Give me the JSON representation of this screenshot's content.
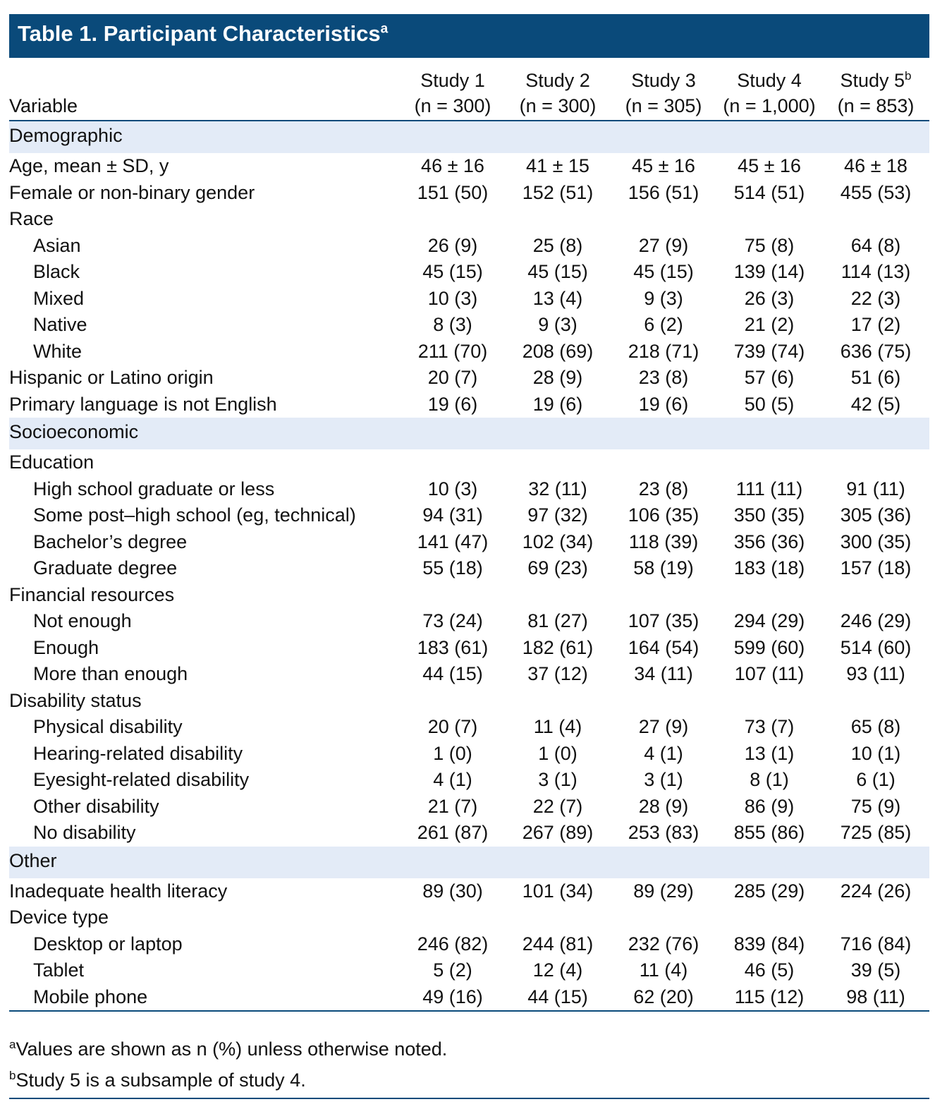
{
  "title": "Table 1. Participant Characteristics",
  "title_note": "a",
  "stub_header": "Variable",
  "columns": [
    {
      "title": "Study 1",
      "n": "(n = 300)"
    },
    {
      "title": "Study 2",
      "n": "(n = 300)"
    },
    {
      "title": "Study 3",
      "n": "(n = 305)"
    },
    {
      "title": "Study 4",
      "n": "(n = 1,000)"
    },
    {
      "title": "Study 5",
      "note": "b",
      "n": "(n = 853)"
    }
  ],
  "sections": [
    {
      "name": "Demographic",
      "rows": [
        {
          "label": "Age, mean ± SD, y",
          "values": [
            "46 ± 16",
            "41 ± 15",
            "45 ± 16",
            "45 ± 16",
            "46 ± 18"
          ]
        },
        {
          "label": "Female or non-binary gender",
          "values": [
            "151 (50)",
            "152 (51)",
            "156 (51)",
            "514 (51)",
            "455 (53)"
          ]
        },
        {
          "label": "Race",
          "items": [
            {
              "label": "Asian",
              "values": [
                "26 (9)",
                "25 (8)",
                "27 (9)",
                "75 (8)",
                "64 (8)"
              ]
            },
            {
              "label": "Black",
              "values": [
                "45 (15)",
                "45 (15)",
                "45 (15)",
                "139 (14)",
                "114 (13)"
              ]
            },
            {
              "label": "Mixed",
              "values": [
                "10 (3)",
                "13 (4)",
                "9 (3)",
                "26 (3)",
                "22 (3)"
              ]
            },
            {
              "label": "Native",
              "values": [
                "8 (3)",
                "9 (3)",
                "6 (2)",
                "21 (2)",
                "17 (2)"
              ]
            },
            {
              "label": "White",
              "values": [
                "211 (70)",
                "208 (69)",
                "218 (71)",
                "739 (74)",
                "636 (75)"
              ]
            }
          ]
        },
        {
          "label": "Hispanic or Latino origin",
          "values": [
            "20 (7)",
            "28 (9)",
            "23 (8)",
            "57 (6)",
            "51 (6)"
          ]
        },
        {
          "label": "Primary language is not English",
          "values": [
            "19 (6)",
            "19 (6)",
            "19 (6)",
            "50 (5)",
            "42 (5)"
          ]
        }
      ]
    },
    {
      "name": "Socioeconomic",
      "rows": [
        {
          "label": "Education",
          "items": [
            {
              "label": "High school graduate or less",
              "values": [
                "10 (3)",
                "32 (11)",
                "23 (8)",
                "111 (11)",
                "91 (11)"
              ]
            },
            {
              "label": "Some post–high school (eg, technical)",
              "values": [
                "94 (31)",
                "97 (32)",
                "106 (35)",
                "350 (35)",
                "305 (36)"
              ]
            },
            {
              "label": "Bachelor’s degree",
              "values": [
                "141 (47)",
                "102 (34)",
                "118 (39)",
                "356 (36)",
                "300 (35)"
              ]
            },
            {
              "label": "Graduate degree",
              "values": [
                "55 (18)",
                "69 (23)",
                "58 (19)",
                "183 (18)",
                "157 (18)"
              ]
            }
          ]
        },
        {
          "label": "Financial resources",
          "items": [
            {
              "label": "Not enough",
              "values": [
                "73 (24)",
                "81 (27)",
                "107 (35)",
                "294 (29)",
                "246 (29)"
              ]
            },
            {
              "label": "Enough",
              "values": [
                "183 (61)",
                "182 (61)",
                "164 (54)",
                "599 (60)",
                "514 (60)"
              ]
            },
            {
              "label": "More than enough",
              "values": [
                "44 (15)",
                "37 (12)",
                "34 (11)",
                "107 (11)",
                "93 (11)"
              ]
            }
          ]
        },
        {
          "label": "Disability status",
          "items": [
            {
              "label": "Physical disability",
              "values": [
                "20 (7)",
                "11 (4)",
                "27 (9)",
                "73 (7)",
                "65 (8)"
              ]
            },
            {
              "label": "Hearing-related disability",
              "values": [
                "1 (0)",
                "1 (0)",
                "4 (1)",
                "13 (1)",
                "10 (1)"
              ]
            },
            {
              "label": "Eyesight-related disability",
              "values": [
                "4 (1)",
                "3 (1)",
                "3 (1)",
                "8 (1)",
                "6 (1)"
              ]
            },
            {
              "label": "Other disability",
              "values": [
                "21 (7)",
                "22 (7)",
                "28 (9)",
                "86 (9)",
                "75 (9)"
              ]
            },
            {
              "label": "No disability",
              "values": [
                "261 (87)",
                "267 (89)",
                "253 (83)",
                "855 (86)",
                "725 (85)"
              ]
            }
          ]
        }
      ]
    },
    {
      "name": "Other",
      "rows": [
        {
          "label": "Inadequate health literacy",
          "values": [
            "89 (30)",
            "101 (34)",
            "89 (29)",
            "285 (29)",
            "224 (26)"
          ]
        },
        {
          "label": "Device type",
          "items": [
            {
              "label": "Desktop or laptop",
              "values": [
                "246 (82)",
                "244 (81)",
                "232 (76)",
                "839 (84)",
                "716 (84)"
              ]
            },
            {
              "label": "Tablet",
              "values": [
                "5 (2)",
                "12 (4)",
                "11 (4)",
                "46 (5)",
                "39 (5)"
              ]
            },
            {
              "label": "Mobile phone",
              "values": [
                "49 (16)",
                "44 (15)",
                "62 (20)",
                "115 (12)",
                "98 (11)"
              ]
            }
          ]
        }
      ]
    }
  ],
  "footnotes": [
    {
      "mark": "a",
      "text": "Values are shown as n (%) unless otherwise noted."
    },
    {
      "mark": "b",
      "text": "Study 5 is a subsample of study 4."
    }
  ]
}
